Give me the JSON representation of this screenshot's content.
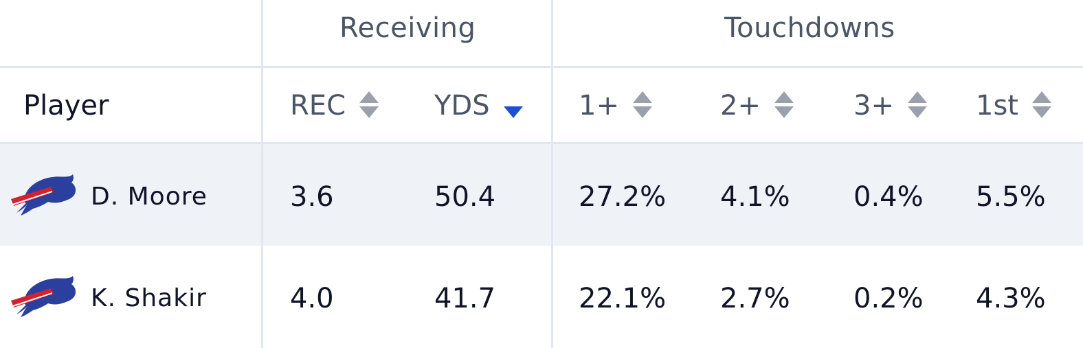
{
  "groups": {
    "receiving": "Receiving",
    "touchdowns": "Touchdowns"
  },
  "columns": {
    "player": "Player",
    "rec": "REC",
    "yds": "YDS",
    "td1": "1+",
    "td2": "2+",
    "td3": "3+",
    "first": "1st"
  },
  "sort": {
    "active_column": "YDS",
    "direction": "descending"
  },
  "colors": {
    "sort_active": "#1d4ed8",
    "sort_inactive": "#9aa1ac",
    "row_shade": "#eff2f7",
    "logo_blue": "#2a3f9e",
    "logo_red": "#d3212f"
  },
  "rows": [
    {
      "team_icon": "buffalo-bills-logo-icon",
      "player": "D. Moore",
      "rec": "3.6",
      "yds": "50.4",
      "td1": "27.2%",
      "td2": "4.1%",
      "td3": "0.4%",
      "first": "5.5%"
    },
    {
      "team_icon": "buffalo-bills-logo-icon",
      "player": "K. Shakir",
      "rec": "4.0",
      "yds": "41.7",
      "td1": "22.1%",
      "td2": "2.7%",
      "td3": "0.2%",
      "first": "4.3%"
    }
  ]
}
